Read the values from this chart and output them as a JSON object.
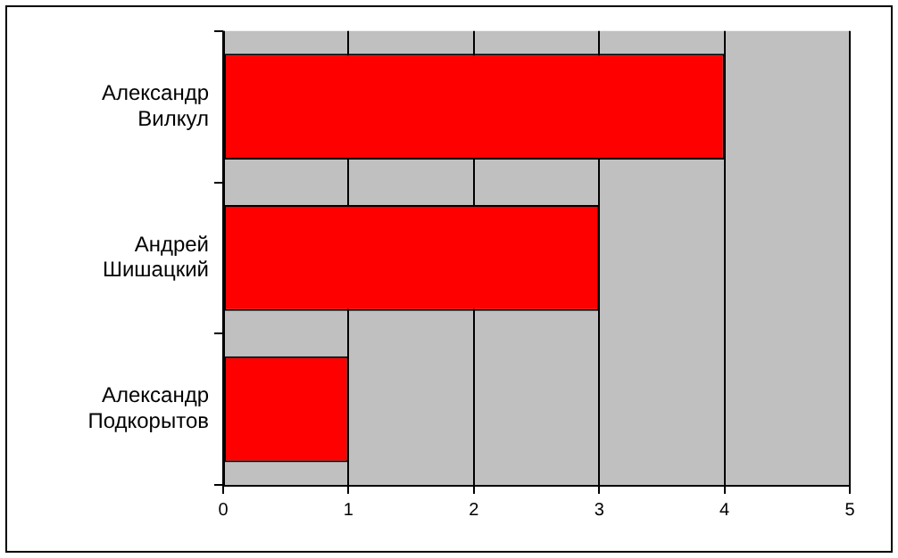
{
  "chart_data": {
    "type": "bar",
    "orientation": "horizontal",
    "categories": [
      "Александр Вилкул",
      "Андрей Шишацкий",
      "Александр Подкорытов"
    ],
    "values": [
      4,
      3,
      1
    ],
    "color": "#ff0000",
    "xlim": [
      0,
      5
    ],
    "xticks": [
      0,
      1,
      2,
      3,
      4,
      5
    ],
    "grid": "x",
    "legend": false
  }
}
